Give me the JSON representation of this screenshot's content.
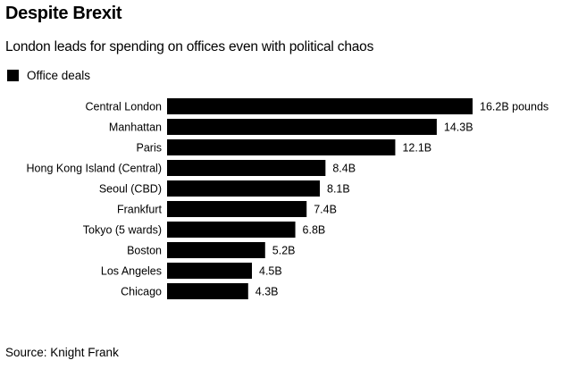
{
  "header": {
    "title": "Despite Brexit",
    "subtitle": "London leads for spending on offices even with political chaos"
  },
  "legend": {
    "label": "Office deals",
    "color": "#000000"
  },
  "footer": {
    "source": "Source: Knight Frank"
  },
  "chart_data": {
    "type": "bar",
    "orientation": "horizontal",
    "categories": [
      "Central London",
      "Manhattan",
      "Paris",
      "Hong Kong Island (Central)",
      "Seoul (CBD)",
      "Frankfurt",
      "Tokyo (5 wards)",
      "Boston",
      "Los Angeles",
      "Chicago"
    ],
    "series": [
      {
        "name": "Office deals",
        "values": [
          16.2,
          14.3,
          12.1,
          8.4,
          8.1,
          7.4,
          6.8,
          5.2,
          4.5,
          4.3
        ],
        "labels": [
          "16.2B pounds",
          "14.3B",
          "12.1B",
          "8.4B",
          "8.1B",
          "7.4B",
          "6.8B",
          "5.2B",
          "4.5B",
          "4.3B"
        ],
        "color": "#000000"
      }
    ],
    "title": "Despite Brexit",
    "subtitle": "London leads for spending on offices even with political chaos",
    "xlim": [
      0,
      16.2
    ],
    "grid": false,
    "legend_position": "top-left"
  }
}
